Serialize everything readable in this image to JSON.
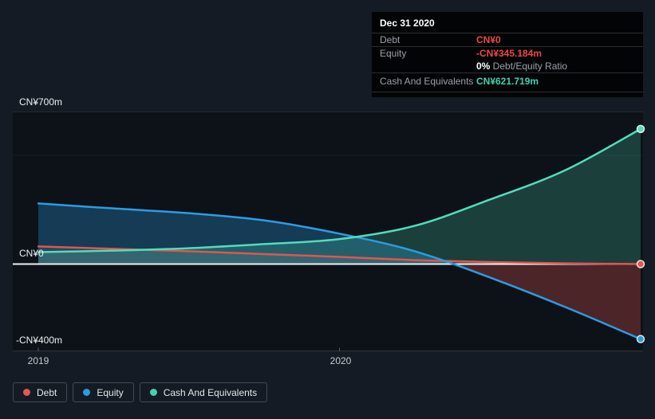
{
  "colors": {
    "page_bg": "#151b24",
    "plot_bg": "#0c1218",
    "zero_line": "#edf1f4",
    "grid_strong": "rgba(255,255,255,0.10)",
    "grid_faint": "rgba(255,255,255,0.055)",
    "axis_line": "rgba(255,255,255,0.16)",
    "tick": "#596069",
    "debt": "#e25550",
    "equity": "#2b9ce4",
    "cash": "#50ddbb",
    "debt_dot": "#e25757",
    "equity_dot": "#2b9ce4",
    "cash_dot": "#3fd4b1",
    "debt_fill": "rgba(226,85,80,0.16)",
    "equity_fill": "rgba(43,156,228,0.30)",
    "equity_negative_fill": "rgba(226,84,78,0.30)",
    "cash_fill": "rgba(80,221,187,0.22)",
    "tooltip_red": "#ee4940",
    "tooltip_teal": "#3ed3ae",
    "marker_ring": "rgba(255,255,255,0.85)"
  },
  "tooltip": {
    "date": "Dec 31 2020",
    "debt_label": "Debt",
    "debt_value": "CN¥0",
    "equity_label": "Equity",
    "equity_value": "-CN¥345.184m",
    "ratio_bold": "0%",
    "ratio_text": " Debt/Equity Ratio",
    "cash_label": "Cash And Equivalents",
    "cash_value": "CN¥621.719m"
  },
  "legend": {
    "items": [
      {
        "label": "Debt",
        "color_key": "debt_dot"
      },
      {
        "label": "Equity",
        "color_key": "equity_dot"
      },
      {
        "label": "Cash And Equivalents",
        "color_key": "cash_dot"
      }
    ]
  },
  "chart_data": {
    "type": "area",
    "y_unit": "CN¥ millions",
    "ylim": [
      -402,
      702
    ],
    "x_range_years": [
      2019.0,
      2021.0
    ],
    "grid": "on",
    "legend_position": "bottom-left",
    "y_labels": [
      {
        "text": "CN¥700m",
        "value": 700
      },
      {
        "text": "CN¥0",
        "value": 0
      },
      {
        "text": "-CN¥400m",
        "value": -400
      }
    ],
    "y_gridline_values": [
      700,
      500
    ],
    "x_ticks": [
      {
        "label": "2019",
        "year": 2019
      },
      {
        "label": "2020",
        "year": 2020
      }
    ],
    "highlighted_point_date": "Dec 31 2020",
    "series": [
      {
        "key": "debt",
        "name": "Debt",
        "years": [
          2019.0,
          2019.25,
          2019.5,
          2019.75,
          2020.0,
          2020.25,
          2020.5,
          2020.75,
          2021.0
        ],
        "values": [
          81,
          70,
          59,
          46,
          33,
          18,
          9,
          3,
          0
        ]
      },
      {
        "key": "equity",
        "name": "Equity",
        "years": [
          2019.0,
          2019.25,
          2019.5,
          2019.75,
          2020.0,
          2020.25,
          2020.5,
          2020.75,
          2021.0
        ],
        "values": [
          279,
          256,
          234,
          201,
          140,
          59,
          -62,
          -198,
          -345.184
        ]
      },
      {
        "key": "cash",
        "name": "Cash And Equivalents",
        "years": [
          2019.0,
          2019.25,
          2019.5,
          2019.75,
          2020.0,
          2020.25,
          2020.5,
          2020.75,
          2021.0
        ],
        "values": [
          55,
          62,
          73,
          92,
          115,
          176,
          297,
          432,
          621.719
        ]
      }
    ]
  }
}
